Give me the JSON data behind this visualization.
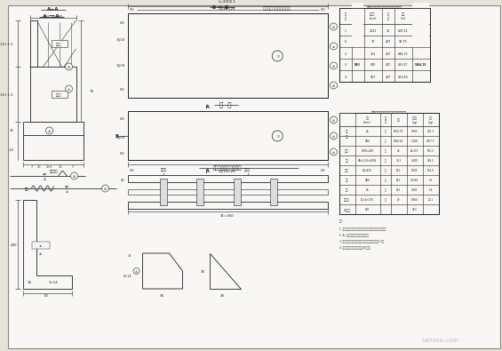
{
  "bg_color": "#f0ece4",
  "line_color": "#222222",
  "page_bg": "#e8e3d8",
  "white": "#f8f7f5",
  "gray_fill": "#c8c4bc"
}
